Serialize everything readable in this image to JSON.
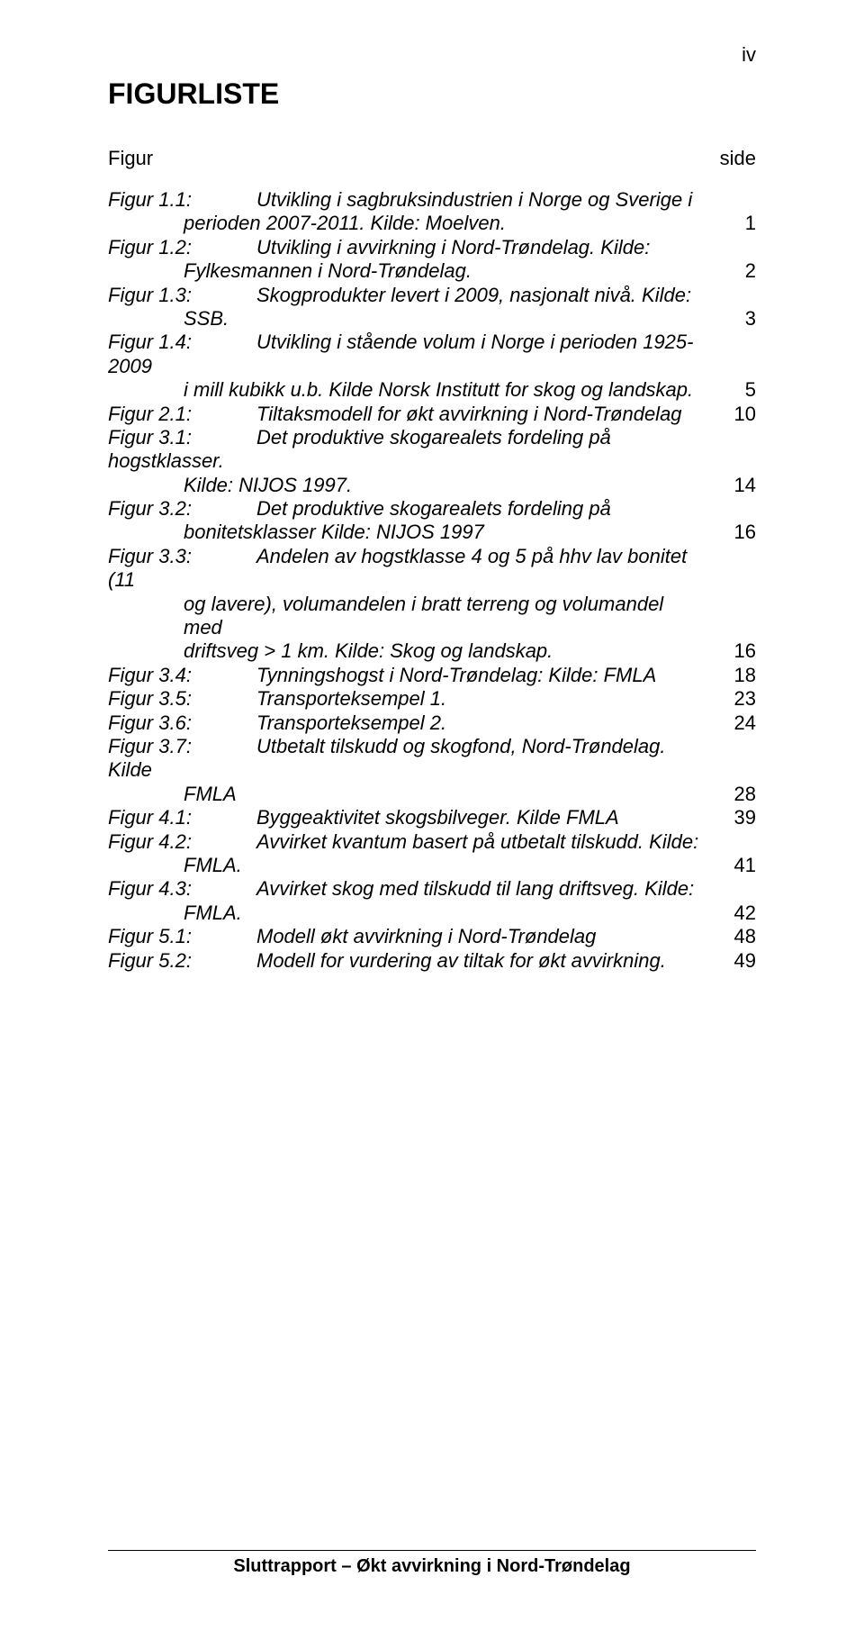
{
  "page_number": "iv",
  "title": "FIGURLISTE",
  "header_left": "Figur",
  "header_right": "side",
  "footer": "Sluttrapport – Økt avvirkning i Nord-Trøndelag",
  "entries": [
    {
      "label": "Figur 1.1:",
      "first": "Utvikling i sagbruksindustrien i Norge og Sverige i",
      "cont": [
        "perioden 2007-2011. Kilde: Moelven."
      ],
      "page": "1"
    },
    {
      "label": "Figur 1.2:",
      "first": "Utvikling i avvirkning i Nord-Trøndelag. Kilde:",
      "cont": [
        "Fylkesmannen i Nord-Trøndelag."
      ],
      "page": "2"
    },
    {
      "label": "Figur 1.3:",
      "first": "Skogprodukter levert i 2009, nasjonalt nivå. Kilde:",
      "cont": [
        "SSB."
      ],
      "page": "3"
    },
    {
      "label": "Figur 1.4:",
      "first": "Utvikling i stående volum i Norge i perioden 1925-2009",
      "cont": [
        "i mill kubikk u.b. Kilde Norsk Institutt for skog og landskap."
      ],
      "page": "5"
    },
    {
      "label": "Figur 2.1:",
      "first": "Tiltaksmodell for økt avvirkning i Nord-Trøndelag",
      "cont": [],
      "page": "10"
    },
    {
      "label": "Figur 3.1:",
      "first": "Det produktive skogarealets fordeling på hogstklasser.",
      "cont": [
        "Kilde:   NIJOS 1997."
      ],
      "page": "14"
    },
    {
      "label": "Figur 3.2:",
      "first": "Det produktive skogarealets fordeling på",
      "cont": [
        "bonitetsklasser Kilde:   NIJOS 1997"
      ],
      "page": "16"
    },
    {
      "label": "Figur 3.3:",
      "first": "Andelen av hogstklasse 4 og 5 på hhv lav bonitet (11",
      "cont": [
        "og    lavere), volumandelen i bratt terreng og volumandel med",
        "driftsveg > 1 km. Kilde: Skog og landskap."
      ],
      "page": "16"
    },
    {
      "label": "Figur 3.4:",
      "first": "Tynningshogst i Nord-Trøndelag: Kilde: FMLA",
      "cont": [],
      "page": "18"
    },
    {
      "label": "Figur 3.5:",
      "first": "Transporteksempel 1.",
      "cont": [],
      "page": "23"
    },
    {
      "label": "Figur 3.6:",
      "first": "Transporteksempel 2.",
      "cont": [],
      "page": "24"
    },
    {
      "label": "Figur 3.7:",
      "first": "Utbetalt tilskudd og skogfond, Nord-Trøndelag. Kilde",
      "cont": [
        "FMLA"
      ],
      "page": "28"
    },
    {
      "label": "Figur 4.1:",
      "first": "Byggeaktivitet skogsbilveger. Kilde FMLA",
      "cont": [],
      "page": "39"
    },
    {
      "label": "Figur 4.2:",
      "first": "Avvirket kvantum basert på utbetalt tilskudd. Kilde:",
      "cont": [
        "FMLA."
      ],
      "page": "41"
    },
    {
      "label": "Figur 4.3:",
      "first": "Avvirket skog med tilskudd til lang driftsveg. Kilde:",
      "cont": [
        "FMLA."
      ],
      "page": "42"
    },
    {
      "label": "Figur 5.1:",
      "first": "Modell økt avvirkning i Nord-Trøndelag",
      "cont": [],
      "page": "48"
    },
    {
      "label": "Figur 5.2:",
      "first": "Modell for vurdering av tiltak for økt avvirkning.",
      "cont": [],
      "page": "49"
    }
  ]
}
